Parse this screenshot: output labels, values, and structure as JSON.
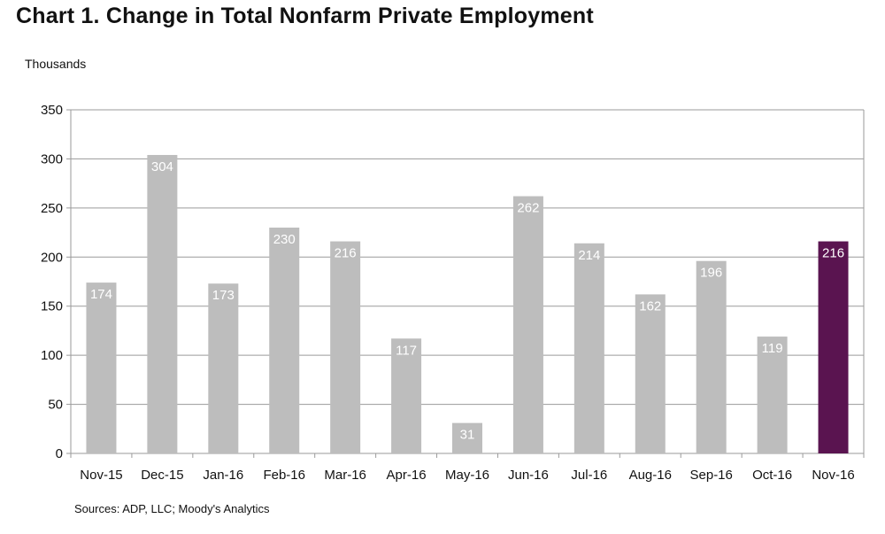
{
  "header": {
    "title": "Chart 1. Change in Total Nonfarm Private Employment",
    "unit_label": "Thousands"
  },
  "footer": {
    "source": "Sources: ADP, LLC; Moody's Analytics"
  },
  "colors": {
    "bar": "#bdbdbd",
    "highlight": "#5a1450",
    "grid": "#9a9a9a"
  },
  "chart_data": {
    "type": "bar",
    "title": "Chart 1. Change in Total Nonfarm Private Employment",
    "ylabel": "Thousands",
    "xlabel": "",
    "categories": [
      "Nov-15",
      "Dec-15",
      "Jan-16",
      "Feb-16",
      "Mar-16",
      "Apr-16",
      "May-16",
      "Jun-16",
      "Jul-16",
      "Aug-16",
      "Sep-16",
      "Oct-16",
      "Nov-16"
    ],
    "values": [
      174,
      304,
      173,
      230,
      216,
      117,
      31,
      262,
      214,
      162,
      196,
      119,
      216
    ],
    "highlighted_category": "Nov-16",
    "ylim": [
      0,
      350
    ],
    "yticks": [
      0,
      50,
      100,
      150,
      200,
      250,
      300,
      350
    ],
    "grid": true,
    "legend": "none"
  }
}
